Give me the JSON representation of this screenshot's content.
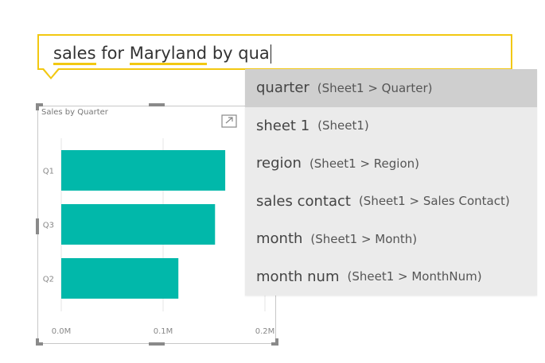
{
  "qna": {
    "query_parts": [
      "sales",
      " for ",
      "Maryland",
      " by ",
      "qua"
    ]
  },
  "suggestions": [
    {
      "term": "quarter",
      "path": "(Sheet1 > Quarter)"
    },
    {
      "term": "sheet 1",
      "path": "(Sheet1)"
    },
    {
      "term": "region",
      "path": "(Sheet1 > Region)"
    },
    {
      "term": "sales contact",
      "path": "(Sheet1 > Sales Contact)"
    },
    {
      "term": "month",
      "path": "(Sheet1 > Month)"
    },
    {
      "term": "month num",
      "path": "(Sheet1 > MonthNum)"
    }
  ],
  "visual": {
    "focus_icon": "focus-mode-icon",
    "accent_color": "#f2c811"
  },
  "chart_data": {
    "type": "bar",
    "orientation": "horizontal",
    "title": "Sales by Quarter",
    "categories": [
      "Q1",
      "Q3",
      "Q2"
    ],
    "values": [
      0.161,
      0.151,
      0.115
    ],
    "xticks": [
      "0.0M",
      "0.1M",
      "0.2M"
    ],
    "xlim": [
      0,
      0.2
    ],
    "grid": true,
    "bar_color": "#01b8aa"
  }
}
